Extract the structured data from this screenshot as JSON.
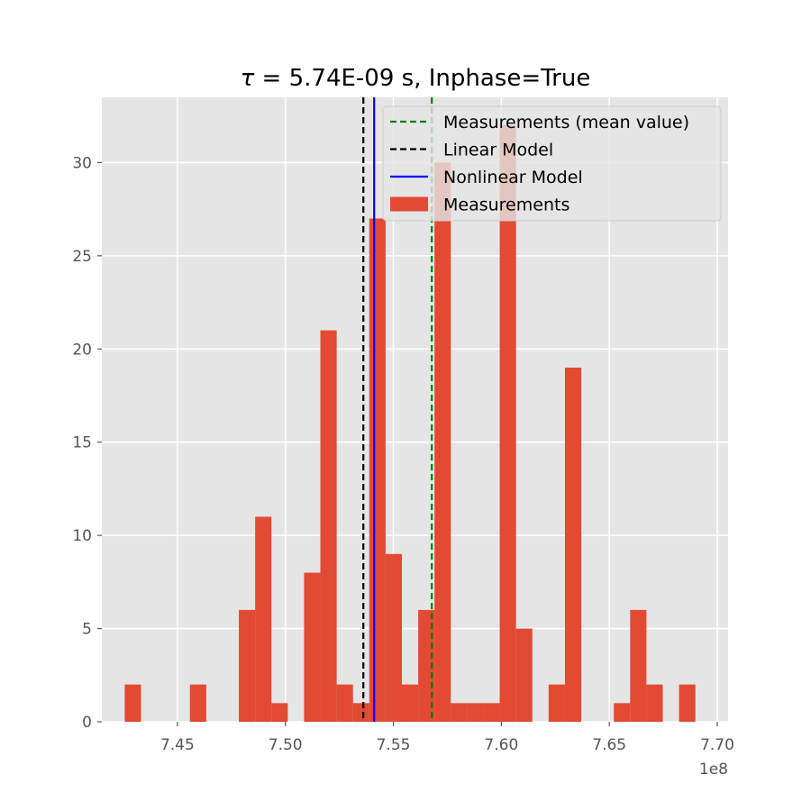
{
  "chart_data": {
    "type": "bar",
    "title_tau": "τ",
    "title_rest": " = 5.74E-09 s, Inphase=True",
    "xlabel": "",
    "ylabel": "",
    "x_offset_label": "1e8",
    "xlim": [
      7.415,
      7.705
    ],
    "ylim": [
      0,
      33.5
    ],
    "x_ticks": [
      7.45,
      7.5,
      7.55,
      7.6,
      7.65,
      7.7
    ],
    "x_tick_labels": [
      "7.45",
      "7.50",
      "7.55",
      "7.60",
      "7.65",
      "7.70"
    ],
    "y_ticks": [
      0,
      5,
      10,
      15,
      20,
      25,
      30
    ],
    "y_tick_labels": [
      "0",
      "5",
      "10",
      "15",
      "20",
      "25",
      "30"
    ],
    "grid": true,
    "legend_position": "upper right",
    "bins": {
      "start": 7.4256,
      "width": 0.00755,
      "counts": [
        2,
        0,
        0,
        0,
        2,
        0,
        0,
        6,
        11,
        1,
        0,
        8,
        21,
        2,
        1,
        27,
        9,
        2,
        6,
        30,
        1,
        1,
        1,
        32,
        5,
        0,
        2,
        19,
        0,
        0,
        1,
        6,
        2,
        0,
        2
      ]
    },
    "series": [
      {
        "name": "Measurements (mean value)",
        "style": "dashed",
        "color": "#008000",
        "x": 7.5678
      },
      {
        "name": " Linear Model",
        "style": "dashed",
        "color": "#000000",
        "x": 7.5361
      },
      {
        "name": "Nonlinear Model",
        "style": "solid",
        "color": "#0000ff",
        "x": 7.5411
      },
      {
        "name": "Measurements",
        "style": "patch",
        "color": "#e24a33"
      }
    ]
  }
}
